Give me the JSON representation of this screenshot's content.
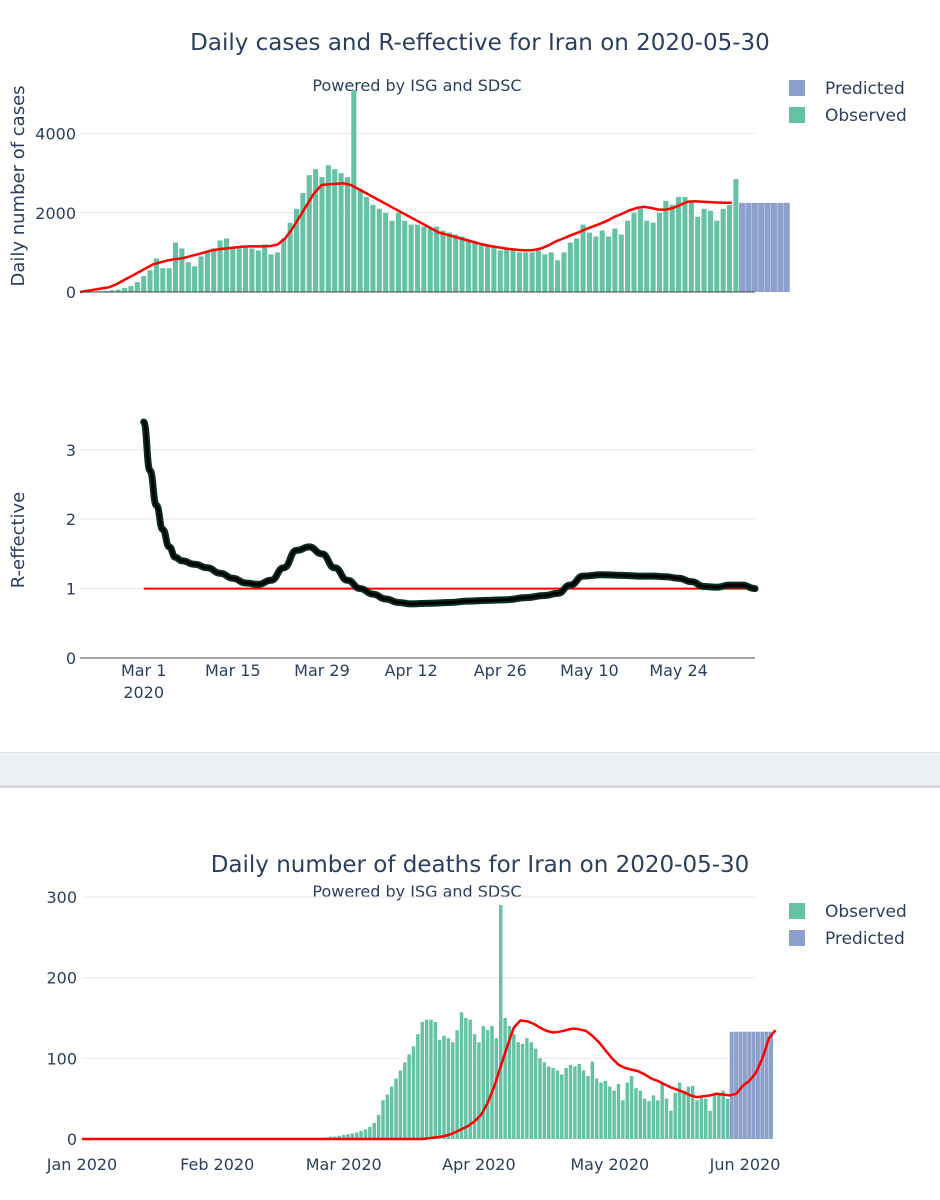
{
  "cases_plot": {
    "title": "Daily cases and R-effective for Iran on 2020-05-30",
    "subtitle": "Powered by ISG and SDSC",
    "ylabel_cases": "Daily number of cases",
    "ylabel_r": "R-effective",
    "legend": [
      {
        "label": "Predicted",
        "color": "#8da0cb"
      },
      {
        "label": "Observed",
        "color": "#66c2a5"
      }
    ]
  },
  "deaths_plot": {
    "title": "Daily number of deaths for Iran on 2020-05-30",
    "subtitle": "Powered by ISG and SDSC",
    "legend": [
      {
        "label": "Observed",
        "color": "#66c2a5"
      },
      {
        "label": "Predicted",
        "color": "#8da0cb"
      }
    ]
  },
  "chart_data": [
    {
      "type": "bar",
      "id": "cases",
      "title": "Daily cases and R-effective for Iran on 2020-05-30",
      "ylabel": "Daily number of cases",
      "ylim": [
        0,
        5300
      ],
      "yticks": [
        0,
        2000,
        4000
      ],
      "x_start": "2020-02-20",
      "observed": [
        0,
        5,
        10,
        20,
        30,
        45,
        60,
        100,
        150,
        250,
        400,
        550,
        850,
        600,
        600,
        1250,
        1100,
        750,
        650,
        900,
        1000,
        1100,
        1300,
        1350,
        1150,
        1150,
        1150,
        1100,
        1050,
        1200,
        950,
        1000,
        1350,
        1750,
        2100,
        2500,
        2950,
        3100,
        2900,
        3200,
        3100,
        3000,
        2900,
        5100,
        2600,
        2400,
        2200,
        2100,
        2000,
        1800,
        2000,
        1800,
        1700,
        1700,
        1650,
        1600,
        1650,
        1550,
        1500,
        1450,
        1400,
        1300,
        1250,
        1200,
        1200,
        1150,
        1050,
        1100,
        1050,
        1000,
        1000,
        1000,
        1050,
        950,
        1000,
        800,
        1000,
        1250,
        1350,
        1700,
        1500,
        1400,
        1550,
        1400,
        1600,
        1450,
        1800,
        2000,
        2100,
        1800,
        1750,
        2000,
        2300,
        2200,
        2400,
        2400,
        2300,
        1900,
        2100,
        2050,
        1800,
        2100,
        2200,
        2850
      ],
      "predicted": [
        2250,
        2250,
        2250,
        2250,
        2250,
        2250,
        2250,
        2250
      ],
      "smoothed": [
        0,
        30,
        60,
        90,
        120,
        200,
        300,
        400,
        500,
        600,
        700,
        750,
        800,
        830,
        850,
        900,
        950,
        1000,
        1050,
        1080,
        1100,
        1120,
        1140,
        1150,
        1150,
        1150,
        1160,
        1200,
        1350,
        1600,
        1900,
        2200,
        2500,
        2700,
        2720,
        2730,
        2740,
        2700,
        2600,
        2500,
        2400,
        2300,
        2200,
        2100,
        2000,
        1900,
        1800,
        1700,
        1600,
        1500,
        1450,
        1400,
        1350,
        1300,
        1250,
        1200,
        1160,
        1130,
        1100,
        1080,
        1060,
        1050,
        1060,
        1100,
        1180,
        1280,
        1350,
        1430,
        1500,
        1580,
        1650,
        1720,
        1800,
        1900,
        1970,
        2060,
        2120,
        2150,
        2120,
        2080,
        2080,
        2120,
        2200,
        2280,
        2290,
        2280,
        2270,
        2260,
        2250,
        2250
      ],
      "smoothed_start": "2020-02-20",
      "smoothed_step_days": 1.15
    },
    {
      "type": "line",
      "id": "reff",
      "ylabel": "R-effective",
      "ylim": [
        0,
        3.4
      ],
      "yticks": [
        0,
        1,
        2,
        3
      ],
      "xticks": [
        "Mar 1\n2020",
        "Mar 15",
        "Mar 29",
        "Apr 12",
        "Apr 26",
        "May 10",
        "May 24"
      ],
      "x": [
        "2020-03-01",
        "2020-03-02",
        "2020-03-03",
        "2020-03-04",
        "2020-03-05",
        "2020-03-06",
        "2020-03-07",
        "2020-03-09",
        "2020-03-11",
        "2020-03-13",
        "2020-03-15",
        "2020-03-17",
        "2020-03-19",
        "2020-03-21",
        "2020-03-23",
        "2020-03-25",
        "2020-03-27",
        "2020-03-29",
        "2020-03-31",
        "2020-04-02",
        "2020-04-04",
        "2020-04-06",
        "2020-04-08",
        "2020-04-10",
        "2020-04-12",
        "2020-04-15",
        "2020-04-18",
        "2020-04-21",
        "2020-04-24",
        "2020-04-27",
        "2020-04-30",
        "2020-05-03",
        "2020-05-05",
        "2020-05-07",
        "2020-05-09",
        "2020-05-12",
        "2020-05-15",
        "2020-05-18",
        "2020-05-20",
        "2020-05-22",
        "2020-05-24",
        "2020-05-26",
        "2020-05-28",
        "2020-05-30",
        "2020-06-01",
        "2020-06-03",
        "2020-06-05"
      ],
      "values": [
        3.4,
        2.7,
        2.2,
        1.85,
        1.6,
        1.45,
        1.4,
        1.35,
        1.3,
        1.22,
        1.15,
        1.08,
        1.06,
        1.12,
        1.3,
        1.55,
        1.6,
        1.5,
        1.3,
        1.12,
        1.0,
        0.92,
        0.85,
        0.8,
        0.78,
        0.79,
        0.8,
        0.82,
        0.83,
        0.84,
        0.87,
        0.9,
        0.93,
        1.05,
        1.18,
        1.2,
        1.19,
        1.18,
        1.18,
        1.17,
        1.15,
        1.1,
        1.03,
        1.02,
        1.05,
        1.05,
        1.0
      ],
      "reference_line": {
        "value": 1,
        "x_start": "2020-03-01",
        "x_end": "2020-06-05"
      }
    },
    {
      "type": "bar",
      "id": "deaths",
      "title": "Daily number of deaths for Iran on 2020-05-30",
      "ylim": [
        0,
        305
      ],
      "yticks": [
        0,
        100,
        200,
        300
      ],
      "xticks": [
        "Jan 2020",
        "Feb 2020",
        "Mar 2020",
        "Apr 2020",
        "May 2020",
        "Jun 2020"
      ],
      "x_start": "2020-02-19",
      "observed": [
        0,
        0,
        0,
        0,
        1,
        1,
        1,
        2,
        3,
        3,
        4,
        5,
        6,
        7,
        8,
        10,
        12,
        15,
        20,
        30,
        48,
        55,
        65,
        75,
        85,
        95,
        105,
        115,
        130,
        145,
        148,
        148,
        145,
        123,
        128,
        125,
        120,
        135,
        157,
        150,
        148,
        130,
        120,
        140,
        135,
        140,
        125,
        290,
        150,
        140,
        130,
        120,
        118,
        125,
        120,
        112,
        100,
        95,
        90,
        88,
        85,
        80,
        88,
        92,
        90,
        93,
        85,
        78,
        96,
        75,
        70,
        72,
        65,
        60,
        68,
        48,
        70,
        78,
        63,
        60,
        50,
        47,
        54,
        48,
        70,
        50,
        35,
        57,
        70,
        60,
        65,
        66,
        48,
        51,
        50,
        35,
        55,
        55,
        60,
        50
      ],
      "predicted": [
        133,
        133,
        133,
        133,
        133,
        133,
        133,
        133,
        133,
        133
      ],
      "smoothed": [
        0,
        0,
        0,
        0,
        0,
        0,
        0,
        0,
        0,
        0,
        0,
        0,
        0,
        0,
        0,
        0,
        0,
        0,
        0,
        0,
        0,
        0,
        0,
        0,
        0,
        0,
        0,
        0,
        0,
        0,
        0,
        0,
        0,
        0,
        0,
        0,
        0,
        0,
        0,
        0,
        0,
        0,
        0,
        0,
        0,
        0,
        0,
        0,
        0,
        0,
        0,
        0,
        0,
        1,
        2,
        3,
        5,
        8,
        12,
        16,
        22,
        30,
        45,
        65,
        90,
        115,
        138,
        147,
        146,
        143,
        138,
        134,
        132,
        133,
        135,
        137,
        136,
        134,
        128,
        120,
        110,
        100,
        92,
        88,
        86,
        84,
        80,
        75,
        72,
        68,
        64,
        61,
        58,
        54,
        52,
        53,
        54,
        56,
        55,
        54,
        56,
        66,
        72,
        82,
        100,
        125,
        135
      ],
      "smoothed_start": "2020-01-01",
      "smoothed_step_days": 1.5
    }
  ]
}
